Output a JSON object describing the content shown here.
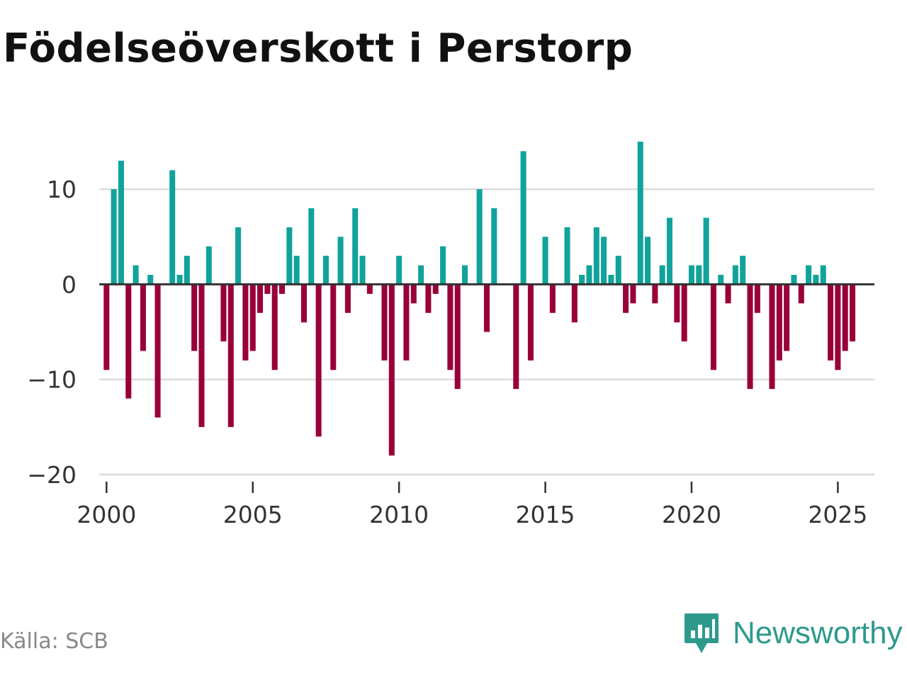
{
  "title": "Födelseöverskott i Perstorp",
  "source": "Källa: SCB",
  "brand": "Newsworthy",
  "colors": {
    "positive": "#11a39b",
    "negative": "#99003a",
    "grid": "#dddddd",
    "zero": "#333333",
    "brand": "#2d9a8c"
  },
  "chart_data": {
    "type": "bar",
    "title": "Födelseöverskott i Perstorp",
    "xlabel": "",
    "ylabel": "",
    "frequency": "quarterly",
    "start": {
      "year": 2000,
      "quarter": 1
    },
    "xlim": [
      1999.75,
      2026.25
    ],
    "ylim": [
      -20,
      15
    ],
    "yticks": [
      {
        "value": 10,
        "label": "10"
      },
      {
        "value": 0,
        "label": "0"
      },
      {
        "value": -10,
        "label": "−10"
      },
      {
        "value": -20,
        "label": "−20"
      }
    ],
    "xticks": [
      {
        "value": 2000,
        "label": "2000"
      },
      {
        "value": 2005,
        "label": "2005"
      },
      {
        "value": 2010,
        "label": "2010"
      },
      {
        "value": 2015,
        "label": "2015"
      },
      {
        "value": 2020,
        "label": "2020"
      },
      {
        "value": 2025,
        "label": "2025"
      }
    ],
    "values": [
      -9,
      10,
      13,
      -12,
      2,
      -7,
      1,
      -14,
      0,
      12,
      1,
      3,
      -7,
      -15,
      4,
      0,
      -6,
      -15,
      6,
      -8,
      -7,
      -3,
      -1,
      -9,
      -1,
      6,
      3,
      -4,
      8,
      -16,
      3,
      -9,
      5,
      -3,
      8,
      3,
      -1,
      0,
      -8,
      -18,
      3,
      -8,
      -2,
      2,
      -3,
      -1,
      4,
      -9,
      -11,
      2,
      0,
      10,
      -5,
      8,
      0,
      0,
      -11,
      14,
      -8,
      0,
      5,
      -3,
      0,
      6,
      -4,
      1,
      2,
      6,
      5,
      1,
      3,
      -3,
      -2,
      15,
      5,
      -2,
      2,
      7,
      -4,
      -6,
      2,
      2,
      7,
      -9,
      1,
      -2,
      2,
      3,
      -11,
      -3,
      0,
      -11,
      -8,
      -7,
      1,
      -2,
      2,
      1,
      2,
      -8,
      -9,
      -7,
      -6
    ]
  }
}
